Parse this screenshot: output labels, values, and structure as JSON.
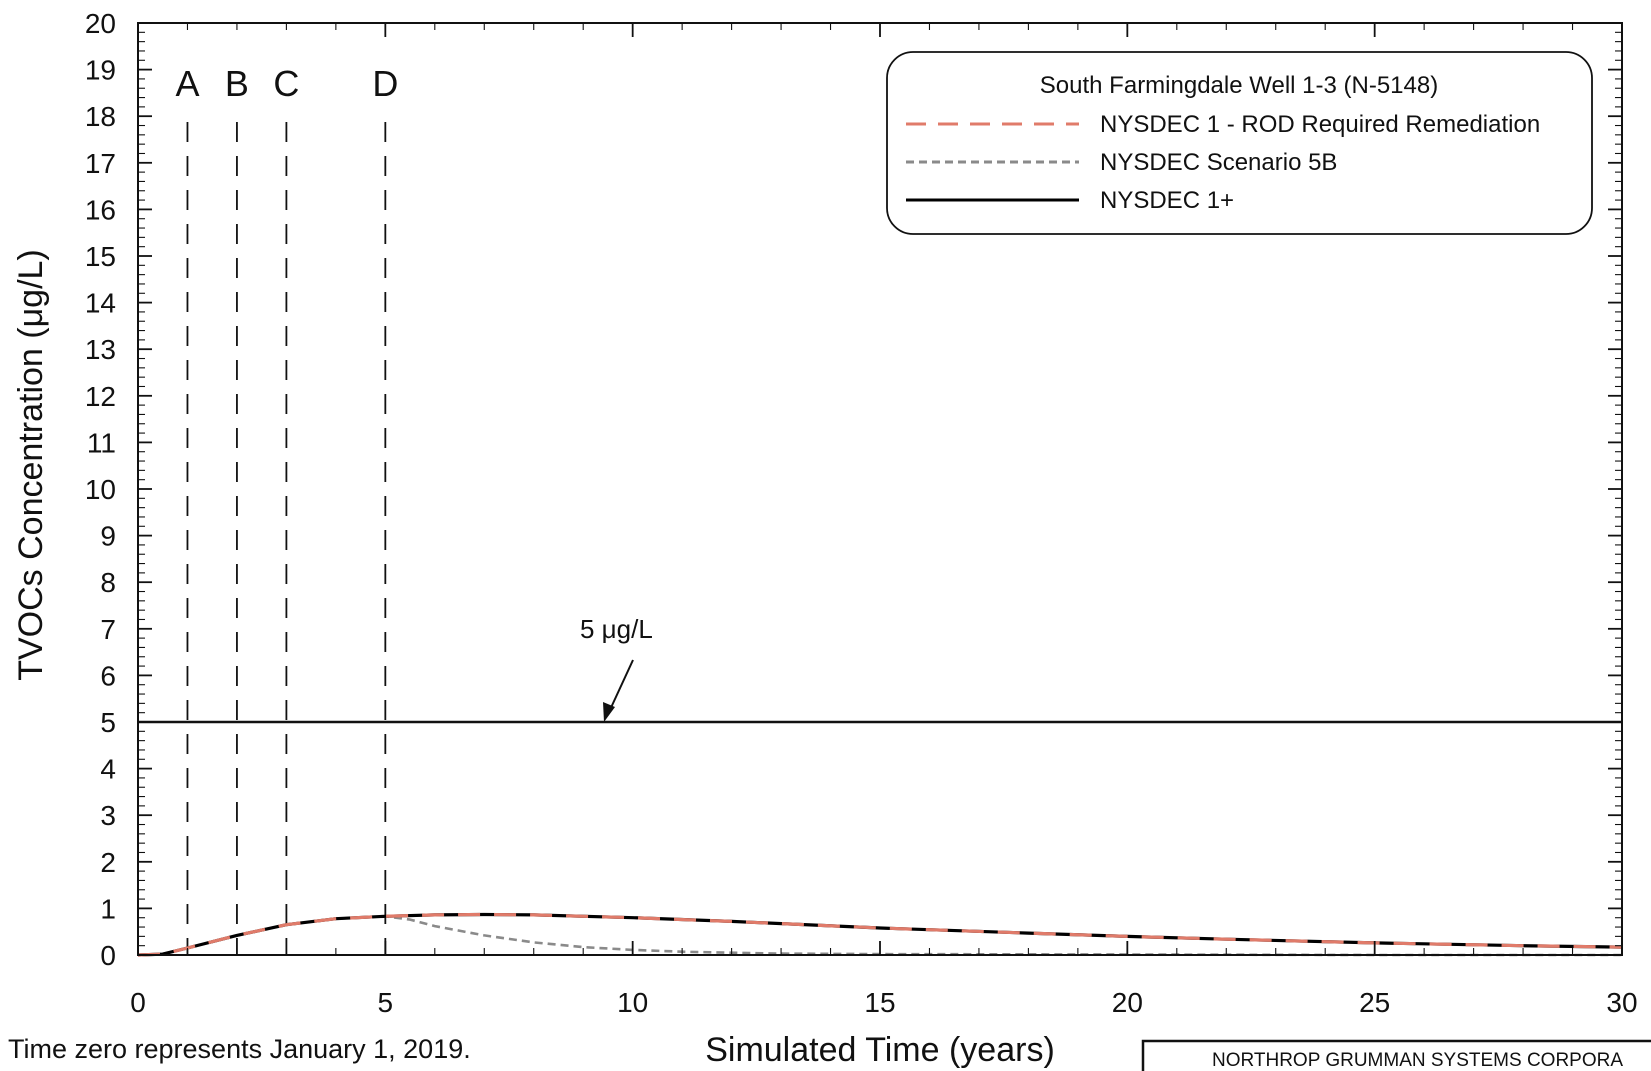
{
  "chart_data": {
    "type": "line",
    "title": "",
    "xlabel": "Simulated Time (years)",
    "ylabel": "TVOCs Concentration (μg/L)",
    "xlim": [
      0,
      30
    ],
    "ylim": [
      0,
      20
    ],
    "x_ticks": [
      0,
      5,
      10,
      15,
      20,
      25,
      30
    ],
    "y_ticks": [
      0,
      1,
      2,
      3,
      4,
      5,
      6,
      7,
      8,
      9,
      10,
      11,
      12,
      13,
      14,
      15,
      16,
      17,
      18,
      19,
      20
    ],
    "x_tick_labels": [
      "0",
      "5",
      "10",
      "15",
      "20",
      "25",
      "30"
    ],
    "y_tick_labels": [
      "0",
      "1",
      "2",
      "3",
      "4",
      "5",
      "6",
      "7",
      "8",
      "9",
      "10",
      "11",
      "12",
      "13",
      "14",
      "15",
      "16",
      "17",
      "18",
      "19",
      "20"
    ],
    "grid": false,
    "legend": {
      "title": "South Farmingdale Well 1-3 (N-5148)",
      "placement": "top-right"
    },
    "series": [
      {
        "name": "NYSDEC 1 - ROD Required Remediation",
        "color": "#e07b6a",
        "style": "long-dash",
        "x": [
          0,
          0.5,
          1,
          2,
          3,
          4,
          5,
          6,
          7,
          8,
          10,
          12,
          15,
          18,
          20,
          22,
          25,
          28,
          30
        ],
        "y": [
          0,
          0.02,
          0.15,
          0.42,
          0.65,
          0.78,
          0.83,
          0.86,
          0.87,
          0.86,
          0.8,
          0.72,
          0.58,
          0.47,
          0.4,
          0.34,
          0.26,
          0.2,
          0.17
        ]
      },
      {
        "name": "NYSDEC Scenario 5B",
        "color": "#8a8a8a",
        "style": "short-dash",
        "x": [
          0,
          0.5,
          1,
          2,
          3,
          4,
          5,
          5.5,
          6,
          7,
          8,
          9,
          10,
          11,
          12,
          13,
          15,
          20,
          25,
          30
        ],
        "y": [
          0,
          0.02,
          0.15,
          0.42,
          0.65,
          0.78,
          0.83,
          0.76,
          0.62,
          0.42,
          0.27,
          0.17,
          0.11,
          0.07,
          0.05,
          0.03,
          0.02,
          0.01,
          0.0,
          0.0
        ]
      },
      {
        "name": "NYSDEC 1+",
        "color": "#000000",
        "style": "solid",
        "x": [
          0,
          0.5,
          1,
          2,
          3,
          4,
          5,
          6,
          7,
          8,
          10,
          12,
          15,
          18,
          20,
          22,
          25,
          28,
          30
        ],
        "y": [
          0,
          0.02,
          0.15,
          0.42,
          0.65,
          0.78,
          0.83,
          0.86,
          0.87,
          0.86,
          0.8,
          0.72,
          0.58,
          0.47,
          0.4,
          0.34,
          0.26,
          0.2,
          0.17
        ]
      }
    ],
    "reference_line": {
      "y": 5,
      "label": "5 μg/L"
    },
    "vertical_markers": [
      {
        "label": "A",
        "x": 1
      },
      {
        "label": "B",
        "x": 2
      },
      {
        "label": "C",
        "x": 3
      },
      {
        "label": "D",
        "x": 5
      }
    ]
  },
  "footnote": "Time zero represents January 1, 2019.",
  "corporate_box": "NORTHROP GRUMMAN SYSTEMS CORPORA"
}
